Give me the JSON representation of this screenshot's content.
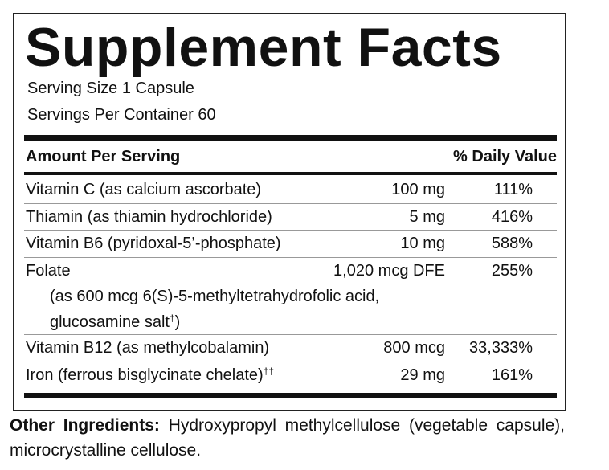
{
  "label": {
    "title": "Supplement Facts",
    "serving_size": "Serving Size 1 Capsule",
    "servings_per_container": "Servings Per Container 60",
    "header": {
      "amount": "Amount Per Serving",
      "daily_value": "% Daily Value"
    },
    "rows": [
      {
        "name": "Vitamin C (as calcium ascorbate)",
        "amount": "100 mg",
        "daily_value": "111%"
      },
      {
        "name": "Thiamin (as thiamin hydrochloride)",
        "amount": "5 mg",
        "daily_value": "416%"
      },
      {
        "name": "Vitamin B6 (pyridoxal-5’-phosphate)",
        "amount": "10 mg",
        "daily_value": "588%"
      },
      {
        "name": "Folate",
        "amount": "1,020 mcg DFE",
        "daily_value": "255%",
        "detail_line_1": "(as 600 mcg 6(S)-5-methyltetrahydrofolic acid,",
        "detail_line_2": "glucosamine salt",
        "detail_mark": "†",
        "detail_end": ")"
      },
      {
        "name": "Vitamin B12 (as methylcobalamin)",
        "amount": "800 mcg",
        "daily_value": "33,333%"
      },
      {
        "name": "Iron (ferrous bisglycinate chelate)",
        "name_mark": "††",
        "amount": "29 mg",
        "daily_value": "161%"
      }
    ],
    "other_ingredients": {
      "label": "Other Ingredients:",
      "text": "Hydroxypropyl methylcellulose (vegetable capsule), microcrystalline cellulose."
    }
  }
}
